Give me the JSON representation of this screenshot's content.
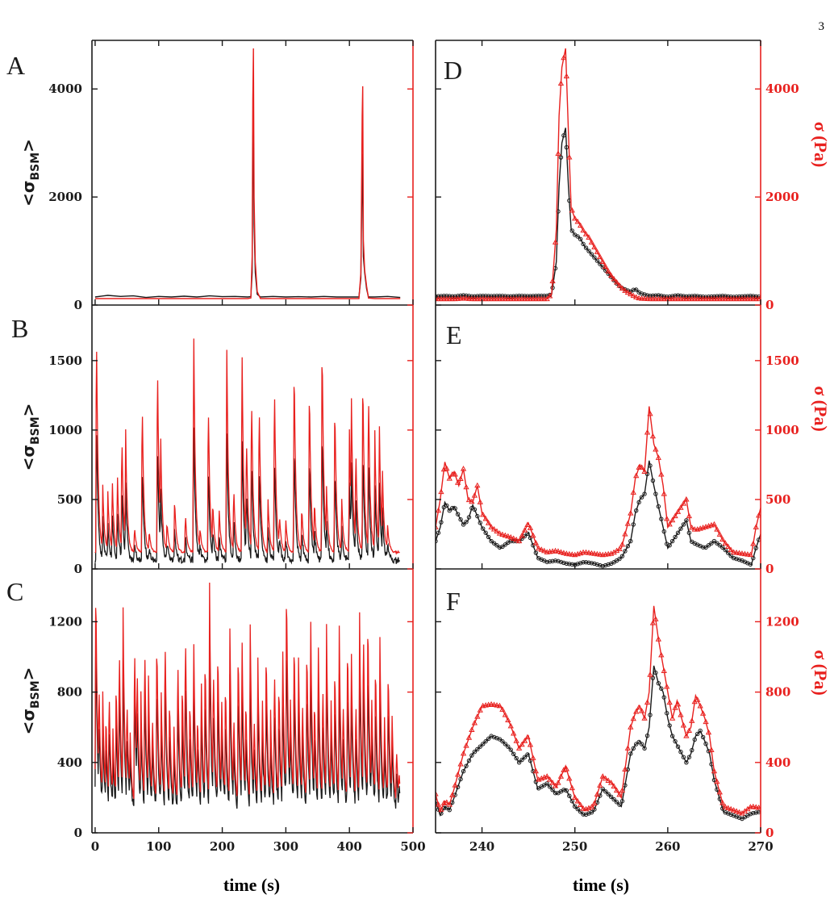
{
  "page_number": "3",
  "colors": {
    "black": "#1a1a1a",
    "red": "#e8201e"
  },
  "x_axis_label": "time (s)",
  "left_ylabel": {
    "prefix": "<σ",
    "subscript": "BSM",
    "suffix": ">"
  },
  "right_ylabel": "σ (Pa)",
  "chart_data": [
    {
      "panel": "A",
      "type": "line",
      "xlim": [
        -5,
        500
      ],
      "ylim": [
        0,
        4900
      ],
      "xticks": [
        0,
        100,
        200,
        300,
        400,
        500
      ],
      "yticks": [
        0,
        2000,
        4000
      ],
      "x": [
        0,
        20,
        40,
        60,
        80,
        100,
        120,
        140,
        160,
        180,
        200,
        220,
        240,
        245,
        247,
        248,
        249,
        250,
        252,
        255,
        260,
        280,
        300,
        320,
        340,
        360,
        380,
        400,
        415,
        418,
        420,
        421,
        422,
        424,
        427,
        430,
        440,
        460,
        480
      ],
      "series": [
        {
          "color": "black",
          "values": [
            150,
            180,
            160,
            170,
            140,
            160,
            150,
            165,
            150,
            170,
            155,
            160,
            150,
            155,
            600,
            2600,
            3300,
            1500,
            600,
            200,
            150,
            160,
            150,
            155,
            150,
            160,
            150,
            150,
            150,
            500,
            2800,
            2000,
            900,
            600,
            300,
            150,
            150,
            160,
            140
          ]
        },
        {
          "color": "red",
          "values": [
            120,
            120,
            120,
            120,
            120,
            120,
            120,
            120,
            120,
            120,
            120,
            120,
            120,
            130,
            900,
            3800,
            4750,
            2000,
            800,
            250,
            120,
            120,
            120,
            120,
            120,
            120,
            120,
            120,
            120,
            600,
            3500,
            4050,
            1200,
            650,
            350,
            130,
            120,
            120,
            120
          ]
        }
      ]
    },
    {
      "panel": "B",
      "type": "line",
      "xlim": [
        -5,
        500
      ],
      "ylim": [
        0,
        1900
      ],
      "xticks": [
        0,
        100,
        200,
        300,
        400,
        500
      ],
      "yticks": [
        0,
        500,
        1000,
        1500
      ],
      "peaks": [
        [
          2,
          1800
        ],
        [
          5,
          640
        ],
        [
          12,
          600
        ],
        [
          20,
          560
        ],
        [
          27,
          650
        ],
        [
          35,
          700
        ],
        [
          42,
          1000
        ],
        [
          48,
          1000
        ],
        [
          62,
          300
        ],
        [
          74,
          1260
        ],
        [
          85,
          280
        ],
        [
          98,
          1570
        ],
        [
          103,
          1000
        ],
        [
          113,
          350
        ],
        [
          125,
          520
        ],
        [
          142,
          400
        ],
        [
          155,
          1780
        ],
        [
          165,
          300
        ],
        [
          178,
          1250
        ],
        [
          185,
          500
        ],
        [
          195,
          450
        ],
        [
          207,
          1690
        ],
        [
          218,
          600
        ],
        [
          231,
          1640
        ],
        [
          238,
          1000
        ],
        [
          246,
          1300
        ],
        [
          258,
          1250
        ],
        [
          272,
          500
        ],
        [
          282,
          1410
        ],
        [
          290,
          400
        ],
        [
          300,
          350
        ],
        [
          313,
          1550
        ],
        [
          325,
          450
        ],
        [
          337,
          1380
        ],
        [
          345,
          500
        ],
        [
          357,
          1720
        ],
        [
          364,
          600
        ],
        [
          377,
          1240
        ],
        [
          388,
          500
        ],
        [
          400,
          1000
        ],
        [
          403,
          1310
        ],
        [
          410,
          900
        ],
        [
          421,
          1450
        ],
        [
          430,
          1340
        ],
        [
          440,
          1000
        ],
        [
          447,
          1100
        ],
        [
          452,
          700
        ],
        [
          460,
          320
        ]
      ],
      "baseline": {
        "black": 60,
        "red": 120
      },
      "black_scale": 0.62,
      "x_end": 480
    },
    {
      "panel": "C",
      "type": "line",
      "xlim": [
        -5,
        500
      ],
      "ylim": [
        0,
        1500
      ],
      "xticks": [
        0,
        100,
        200,
        300,
        400,
        500
      ],
      "yticks": [
        0,
        400,
        800,
        1200
      ],
      "peaks": [
        [
          1,
          1500
        ],
        [
          6,
          900
        ],
        [
          12,
          800
        ],
        [
          17,
          700
        ],
        [
          22,
          850
        ],
        [
          28,
          600
        ],
        [
          33,
          900
        ],
        [
          38,
          1120
        ],
        [
          44,
          1280
        ],
        [
          50,
          800
        ],
        [
          55,
          600
        ],
        [
          62,
          1130
        ],
        [
          66,
          1000
        ],
        [
          72,
          800
        ],
        [
          78,
          1120
        ],
        [
          84,
          900
        ],
        [
          90,
          700
        ],
        [
          97,
          1160
        ],
        [
          104,
          800
        ],
        [
          110,
          1170
        ],
        [
          117,
          800
        ],
        [
          124,
          600
        ],
        [
          130,
          1050
        ],
        [
          137,
          900
        ],
        [
          142,
          1200
        ],
        [
          149,
          800
        ],
        [
          155,
          1150
        ],
        [
          161,
          700
        ],
        [
          167,
          900
        ],
        [
          173,
          1050
        ],
        [
          180,
          1420
        ],
        [
          186,
          1000
        ],
        [
          193,
          1100
        ],
        [
          199,
          800
        ],
        [
          205,
          900
        ],
        [
          212,
          1160
        ],
        [
          218,
          700
        ],
        [
          225,
          1100
        ],
        [
          231,
          1160
        ],
        [
          237,
          800
        ],
        [
          244,
          1180
        ],
        [
          250,
          700
        ],
        [
          256,
          1000
        ],
        [
          263,
          800
        ],
        [
          269,
          1100
        ],
        [
          276,
          700
        ],
        [
          282,
          1000
        ],
        [
          289,
          900
        ],
        [
          295,
          1100
        ],
        [
          301,
          1500
        ],
        [
          307,
          800
        ],
        [
          313,
          1160
        ],
        [
          320,
          1000
        ],
        [
          326,
          800
        ],
        [
          333,
          1120
        ],
        [
          339,
          1280
        ],
        [
          345,
          800
        ],
        [
          351,
          1130
        ],
        [
          358,
          900
        ],
        [
          364,
          1190
        ],
        [
          371,
          800
        ],
        [
          377,
          1000
        ],
        [
          384,
          1180
        ],
        [
          390,
          800
        ],
        [
          397,
          1130
        ],
        [
          403,
          1080
        ],
        [
          410,
          800
        ],
        [
          416,
          1250
        ],
        [
          422,
          1220
        ],
        [
          429,
          1300
        ],
        [
          435,
          800
        ],
        [
          441,
          1020
        ],
        [
          448,
          1110
        ],
        [
          455,
          700
        ],
        [
          461,
          980
        ],
        [
          467,
          700
        ],
        [
          474,
          500
        ],
        [
          478,
          350
        ]
      ],
      "baseline": {
        "black": 100,
        "red": 140
      },
      "black_scale": 0.78,
      "x_end": 480
    },
    {
      "panel": "D",
      "type": "line",
      "xlim": [
        235,
        270
      ],
      "ylim": [
        0,
        4900
      ],
      "xticks": [
        240,
        250,
        260,
        270
      ],
      "yticks": [
        0,
        2000,
        4000
      ],
      "x": [
        235,
        236,
        237,
        238,
        239,
        240,
        241,
        242,
        243,
        244,
        245,
        246,
        247,
        247.5,
        248,
        248.3,
        248.6,
        249,
        249.3,
        249.6,
        250,
        250.5,
        251,
        251.5,
        252,
        252.5,
        253,
        253.5,
        254,
        254.5,
        255,
        255.5,
        256,
        256.5,
        257,
        258,
        259,
        260,
        261,
        262,
        263,
        264,
        265,
        266,
        267,
        268,
        269,
        270
      ],
      "series": [
        {
          "color": "black",
          "values": [
            160,
            170,
            160,
            180,
            160,
            170,
            165,
            170,
            160,
            170,
            165,
            170,
            170,
            200,
            800,
            2200,
            3000,
            3280,
            2200,
            1400,
            1300,
            1250,
            1100,
            1000,
            900,
            800,
            700,
            600,
            500,
            400,
            320,
            280,
            250,
            300,
            220,
            170,
            180,
            150,
            180,
            160,
            170,
            150,
            160,
            170,
            150,
            160,
            170,
            150
          ]
        },
        {
          "color": "red",
          "values": [
            110,
            110,
            110,
            120,
            110,
            110,
            110,
            110,
            110,
            110,
            110,
            110,
            110,
            200,
            1400,
            3500,
            4400,
            4750,
            3200,
            1800,
            1600,
            1500,
            1350,
            1250,
            1100,
            950,
            800,
            650,
            520,
            420,
            320,
            250,
            200,
            150,
            120,
            110,
            110,
            110,
            110,
            110,
            110,
            110,
            110,
            110,
            110,
            110,
            110,
            110
          ]
        }
      ]
    },
    {
      "panel": "E",
      "type": "line",
      "xlim": [
        235,
        270
      ],
      "ylim": [
        0,
        1900
      ],
      "xticks": [
        240,
        250,
        260,
        270
      ],
      "yticks": [
        0,
        500,
        1000,
        1500
      ],
      "x": [
        235,
        235.5,
        236,
        236.5,
        237,
        237.5,
        238,
        238.5,
        239,
        239.5,
        240,
        241,
        242,
        243,
        244,
        245,
        246,
        247,
        248,
        249,
        250,
        251,
        252,
        253,
        254,
        255,
        256,
        256.5,
        257,
        257.5,
        258,
        258.5,
        259,
        259.5,
        260,
        260.5,
        261,
        261.5,
        262,
        262.5,
        263,
        264,
        265,
        266,
        267,
        268,
        269,
        269.5,
        270
      ],
      "series": [
        {
          "color": "black",
          "values": [
            200,
            300,
            480,
            420,
            450,
            380,
            320,
            350,
            460,
            380,
            300,
            200,
            150,
            200,
            200,
            260,
            80,
            50,
            60,
            40,
            30,
            50,
            40,
            20,
            40,
            80,
            200,
            400,
            500,
            540,
            780,
            600,
            450,
            300,
            150,
            200,
            250,
            300,
            350,
            200,
            180,
            150,
            200,
            150,
            80,
            60,
            30,
            150,
            250
          ]
        },
        {
          "color": "red",
          "values": [
            300,
            500,
            770,
            650,
            700,
            600,
            720,
            500,
            480,
            600,
            400,
            300,
            250,
            230,
            200,
            330,
            150,
            120,
            130,
            110,
            100,
            120,
            110,
            100,
            110,
            150,
            400,
            650,
            750,
            700,
            1170,
            900,
            800,
            600,
            300,
            350,
            400,
            450,
            500,
            300,
            280,
            300,
            320,
            200,
            120,
            110,
            100,
            300,
            440
          ]
        }
      ]
    },
    {
      "panel": "F",
      "type": "line",
      "xlim": [
        235,
        270
      ],
      "ylim": [
        0,
        1500
      ],
      "xticks": [
        240,
        250,
        260,
        270
      ],
      "yticks": [
        0,
        400,
        800,
        1200
      ],
      "x": [
        235,
        235.5,
        236,
        236.5,
        237,
        238,
        239,
        240,
        241,
        242,
        243,
        244,
        245,
        246,
        247,
        248,
        249,
        250,
        251,
        252,
        253,
        254,
        255,
        256,
        256.5,
        257,
        257.5,
        258,
        258.5,
        259,
        259.5,
        260,
        260.5,
        261,
        261.5,
        262,
        262.5,
        263,
        263.5,
        264,
        264.5,
        265,
        266,
        267,
        268,
        269,
        270
      ],
      "series": [
        {
          "color": "black",
          "values": [
            180,
            100,
            150,
            130,
            200,
            350,
            450,
            500,
            550,
            530,
            480,
            400,
            450,
            250,
            280,
            220,
            250,
            150,
            100,
            120,
            250,
            200,
            150,
            450,
            500,
            520,
            480,
            600,
            950,
            850,
            800,
            650,
            550,
            500,
            450,
            400,
            450,
            550,
            580,
            520,
            450,
            300,
            120,
            100,
            80,
            110,
            120
          ]
        },
        {
          "color": "red",
          "values": [
            220,
            120,
            180,
            160,
            250,
            450,
            600,
            720,
            730,
            720,
            620,
            480,
            550,
            300,
            320,
            260,
            380,
            200,
            130,
            150,
            320,
            280,
            200,
            600,
            680,
            720,
            650,
            800,
            1290,
            1100,
            950,
            800,
            650,
            750,
            650,
            550,
            600,
            780,
            720,
            650,
            550,
            350,
            150,
            130,
            110,
            150,
            140
          ]
        }
      ]
    }
  ]
}
